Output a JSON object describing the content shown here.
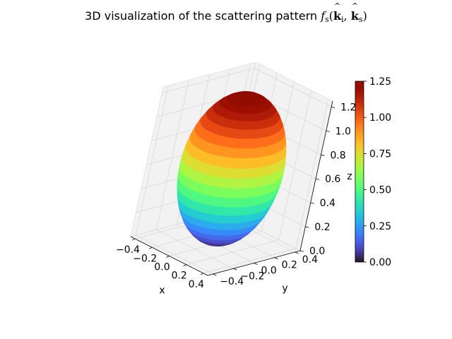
{
  "title_prefix": "3D visualization of the scattering pattern ",
  "title_math": {
    "f": "f",
    "f_sub": "s",
    "open": "(",
    "k1": "k",
    "k1_sub": "i",
    "comma": ", ",
    "k2": "k",
    "k2_sub": "s",
    "close": ")"
  },
  "chart_data": {
    "type": "surface3d",
    "title": "3D visualization of the scattering pattern f_s(k̂_i, k̂_s)",
    "xlabel": "x",
    "ylabel": "y",
    "zlabel": "z",
    "xlim": [
      -0.45,
      0.45
    ],
    "ylim": [
      -0.45,
      0.45
    ],
    "zlim": [
      0.0,
      1.25
    ],
    "x_ticks": [
      "−0.4",
      "−0.2",
      "0.0",
      "0.2",
      "0.4"
    ],
    "y_ticks": [
      "−0.4",
      "−0.2",
      "0.0",
      "0.2",
      "0.4"
    ],
    "z_ticks": [
      "0.0",
      "0.2",
      "0.4",
      "0.6",
      "0.8",
      "1.0",
      "1.2"
    ],
    "surface": {
      "shape": "ellipsoid of revolution",
      "center": [
        0.0,
        0.0,
        0.625
      ],
      "radius_xy": 0.39,
      "half_height_z": 0.625,
      "color_by": "z"
    },
    "colorbar": {
      "colormap": "turbo",
      "range": [
        0.0,
        1.25
      ],
      "ticks": [
        "0.00",
        "0.25",
        "0.50",
        "0.75",
        "1.00",
        "1.25"
      ]
    },
    "grid": true,
    "colors": {
      "pane": "#f2f2f2",
      "grid": "#d9d9d9",
      "edge": "#000000"
    }
  }
}
